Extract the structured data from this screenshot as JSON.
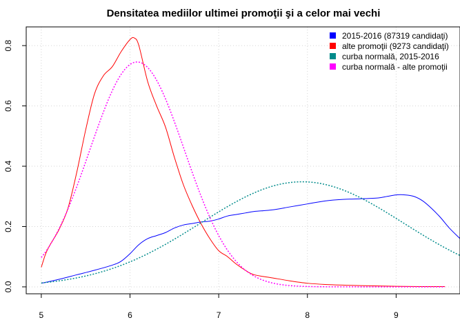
{
  "chart_data": {
    "type": "line",
    "title": "Densitatea mediilor ultimei promoţii şi a celor mai vechi",
    "xlabel": "",
    "ylabel": "",
    "xlim": [
      4.83,
      9.72
    ],
    "ylim": [
      -0.023,
      0.862
    ],
    "grid": true,
    "legend_position": "top-right",
    "x_ticks": [
      5,
      6,
      7,
      8,
      9
    ],
    "y_ticks": [
      0.0,
      0.2,
      0.4,
      0.6,
      0.8
    ],
    "x_tick_labels": [
      "5",
      "6",
      "7",
      "8",
      "9"
    ],
    "y_tick_labels": [
      "0.0",
      "0.2",
      "0.4",
      "0.6",
      "0.8"
    ],
    "series": [
      {
        "name": "2015-2016 (87319 candidaţi)",
        "color": "#0000ff",
        "dash": "solid",
        "x": [
          5.0,
          5.2,
          5.4,
          5.6,
          5.8,
          5.9,
          6.0,
          6.1,
          6.2,
          6.3,
          6.4,
          6.5,
          6.6,
          6.7,
          6.8,
          6.9,
          7.0,
          7.1,
          7.2,
          7.3,
          7.4,
          7.6,
          7.8,
          8.0,
          8.2,
          8.4,
          8.6,
          8.8,
          8.9,
          9.0,
          9.1,
          9.2,
          9.3,
          9.4,
          9.5,
          9.6,
          9.72
        ],
        "y": [
          0.012,
          0.025,
          0.04,
          0.055,
          0.072,
          0.085,
          0.11,
          0.14,
          0.16,
          0.17,
          0.18,
          0.195,
          0.205,
          0.21,
          0.215,
          0.218,
          0.225,
          0.235,
          0.24,
          0.245,
          0.25,
          0.255,
          0.265,
          0.275,
          0.285,
          0.29,
          0.292,
          0.295,
          0.3,
          0.305,
          0.305,
          0.3,
          0.285,
          0.26,
          0.23,
          0.195,
          0.16
        ]
      },
      {
        "name": "alte promoţii (9273 candidaţi)",
        "color": "#ff0000",
        "dash": "solid",
        "x": [
          5.0,
          5.05,
          5.1,
          5.2,
          5.3,
          5.4,
          5.5,
          5.6,
          5.7,
          5.8,
          5.9,
          6.0,
          6.05,
          6.1,
          6.2,
          6.3,
          6.4,
          6.5,
          6.6,
          6.7,
          6.8,
          6.9,
          7.0,
          7.1,
          7.2,
          7.3,
          7.4,
          7.6,
          7.8,
          8.0,
          8.2,
          8.5,
          8.8,
          9.0,
          9.3,
          9.55
        ],
        "y": [
          0.065,
          0.11,
          0.14,
          0.19,
          0.26,
          0.38,
          0.52,
          0.64,
          0.7,
          0.73,
          0.78,
          0.82,
          0.825,
          0.8,
          0.68,
          0.6,
          0.53,
          0.43,
          0.34,
          0.27,
          0.21,
          0.16,
          0.12,
          0.1,
          0.075,
          0.055,
          0.04,
          0.03,
          0.02,
          0.012,
          0.008,
          0.005,
          0.003,
          0.002,
          0.001,
          0.001
        ]
      },
      {
        "name": "curba normală, 2015-2016",
        "color": "#008b8b",
        "dash": "dotted",
        "mean": 7.94,
        "sd": 1.145,
        "x_start": 5.0,
        "x_end": 9.72
      },
      {
        "name": "curba normală - alte promoţii",
        "color": "#ff00ff",
        "dash": "dotted",
        "mean": 6.08,
        "sd": 0.535,
        "x_start": 5.0,
        "x_end": 9.55
      }
    ]
  }
}
